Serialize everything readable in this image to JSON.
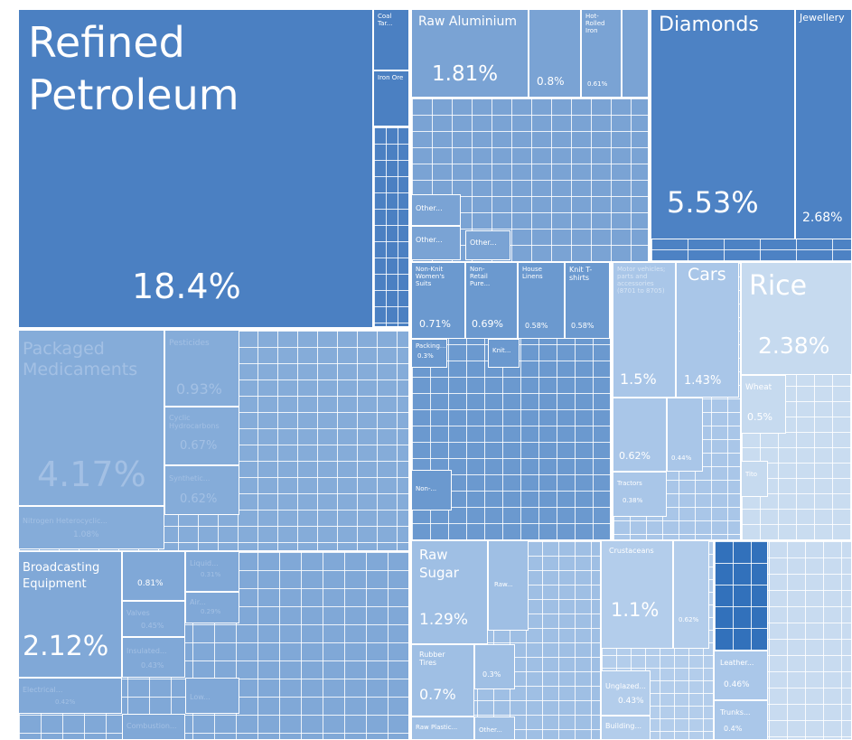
{
  "tiles": [
    {
      "label": "Refined Petroleum",
      "value": "18.4%"
    },
    {
      "label": "Coal Tar..."
    },
    {
      "label": "Iron Ore"
    },
    {
      "label": "Raw Aluminium",
      "value": "1.81%"
    },
    {
      "value": "0.8%"
    },
    {
      "label": "Hot-Rolled Iron",
      "value": "0.61%"
    },
    {
      "label": "Other..."
    },
    {
      "label": "Other..."
    },
    {
      "label": "Other..."
    },
    {
      "label": "Diamonds",
      "value": "5.53%"
    },
    {
      "label": "Jewellery",
      "value": "2.68%"
    },
    {
      "label": "Non-Knit Women's Suits",
      "value": "0.71%"
    },
    {
      "label": "Non-Retail Pure...",
      "value": "0.69%"
    },
    {
      "label": "House Linens",
      "value": "0.58%"
    },
    {
      "label": "Knit T-shirts",
      "value": "0.58%"
    },
    {
      "label": "Packing...",
      "value": "0.3%"
    },
    {
      "label": "Knit..."
    },
    {
      "label": "Non-..."
    },
    {
      "label": "Motor vehicles; parts and accessories (8701 to 8705)",
      "value": "1.5%"
    },
    {
      "label": "Cars",
      "value": "1.43%"
    },
    {
      "value": "0.62%"
    },
    {
      "value": "0.44%"
    },
    {
      "label": "Tractors",
      "value": "0.38%"
    },
    {
      "label": "Rice",
      "value": "2.38%"
    },
    {
      "label": "Wheat",
      "value": "0.5%"
    },
    {
      "label": "Tito"
    },
    {
      "label": "Packaged Medicaments",
      "value": "4.17%"
    },
    {
      "label": "Pesticides",
      "value": "0.93%"
    },
    {
      "label": "Cyclic Hydrocarbons",
      "value": "0.67%"
    },
    {
      "label": "Synthetic...",
      "value": "0.62%"
    },
    {
      "label": "Nitrogen Heterocyclic...",
      "value": "1.08%"
    },
    {
      "label": "Broadcasting Equipment",
      "value": "2.12%"
    },
    {
      "value": "0.81%"
    },
    {
      "label": "Valves",
      "value": "0.45%"
    },
    {
      "label": "Insulated...",
      "value": "0.43%"
    },
    {
      "label": "Electrical...",
      "value": "0.42%"
    },
    {
      "label": "Liquid...",
      "value": "0.31%"
    },
    {
      "label": "Air...",
      "value": "0.29%"
    },
    {
      "label": "Low..."
    },
    {
      "label": "Combustion..."
    },
    {
      "label": "Raw Sugar",
      "value": "1.29%"
    },
    {
      "label": "Raw..."
    },
    {
      "label": "Rubber Tires",
      "value": "0.7%"
    },
    {
      "value": "0.3%"
    },
    {
      "label": "Raw Plastic..."
    },
    {
      "label": "Other..."
    },
    {
      "label": "Crustaceans",
      "value": "1.1%"
    },
    {
      "value": "0.62%"
    },
    {
      "label": "Unglazed...",
      "value": "0.43%"
    },
    {
      "label": "Building..."
    },
    {
      "label": "Leather...",
      "value": "0.46%"
    },
    {
      "label": "Trunks...",
      "value": "0.4%"
    }
  ]
}
